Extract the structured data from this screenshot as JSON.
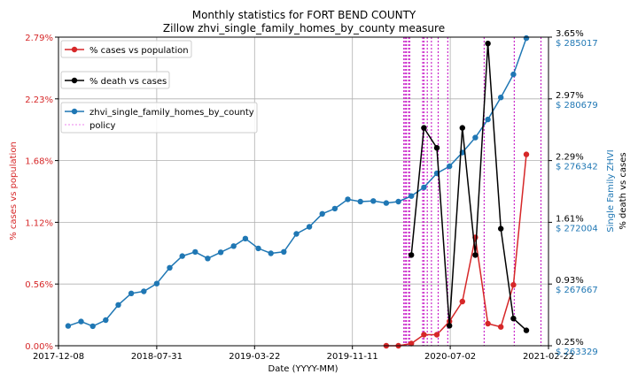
{
  "chart_data": {
    "type": "line",
    "title": "Monthly statistics for FORT BEND COUNTY",
    "subtitle": "Zillow zhvi_single_family_homes_by_county measure",
    "xlabel": "Date (YYYY-MM)",
    "x_ticks": [
      "2017-12-08",
      "2018-07-31",
      "2019-03-22",
      "2019-11-11",
      "2020-07-02",
      "2021-02-22"
    ],
    "xlim": [
      "2017-12-08",
      "2021-02-22"
    ],
    "left_axis": {
      "label": "% cases vs population",
      "color": "#d62728",
      "ylim": [
        0,
        2.79
      ],
      "ticks": [
        "0.00%",
        "0.56%",
        "1.12%",
        "1.68%",
        "2.23%",
        "2.79%"
      ]
    },
    "right_axis_1": {
      "label": "% death vs cases",
      "color": "#000000",
      "ylim": [
        0.25,
        3.65
      ],
      "ticks": [
        "0.25%",
        "0.93%",
        "1.61%",
        "2.29%",
        "2.97%",
        "3.65%"
      ]
    },
    "right_axis_2": {
      "label": "Single Family ZHVI",
      "color": "#1f77b4",
      "ylim": [
        263329,
        285017
      ],
      "ticks": [
        "$ 263329",
        "$ 267667",
        "$ 272004",
        "$ 276342",
        "$ 280679",
        "$ 285017"
      ]
    },
    "legend": [
      {
        "name": "% cases vs population",
        "color": "#d62728"
      },
      {
        "name": "% death vs cases",
        "color": "#000000"
      },
      {
        "name": "zhvi_single_family_homes_by_county",
        "color": "#1f77b4"
      },
      {
        "name": "policy",
        "color": "#ee82ee"
      }
    ],
    "grid": true,
    "series": [
      {
        "name": "% cases vs population",
        "axis": "left",
        "color": "#d62728",
        "x": [
          "2020-01-31",
          "2020-02-29",
          "2020-03-31",
          "2020-04-30",
          "2020-05-31",
          "2020-06-30",
          "2020-07-31",
          "2020-08-31",
          "2020-09-30",
          "2020-10-31",
          "2020-11-30",
          "2020-12-31"
        ],
        "values": [
          0.0,
          0.0,
          0.02,
          0.1,
          0.1,
          0.22,
          0.4,
          0.98,
          0.2,
          0.17,
          0.55,
          1.73
        ]
      },
      {
        "name": "% death vs cases",
        "axis": "right_1",
        "color": "#000000",
        "x": [
          "2020-03-31",
          "2020-04-30",
          "2020-05-31",
          "2020-06-30",
          "2020-07-31",
          "2020-08-31",
          "2020-09-30",
          "2020-10-31",
          "2020-11-30",
          "2020-12-31"
        ],
        "values": [
          1.25,
          2.65,
          2.43,
          0.47,
          2.65,
          1.25,
          3.58,
          1.54,
          0.55,
          0.42
        ]
      },
      {
        "name": "zhvi_single_family_homes_by_county",
        "axis": "right_2",
        "color": "#1f77b4",
        "x": [
          "2017-12-31",
          "2018-01-31",
          "2018-02-28",
          "2018-03-31",
          "2018-04-30",
          "2018-05-31",
          "2018-06-30",
          "2018-07-31",
          "2018-08-31",
          "2018-09-30",
          "2018-10-31",
          "2018-11-30",
          "2018-12-31",
          "2019-01-31",
          "2019-02-28",
          "2019-03-31",
          "2019-04-30",
          "2019-05-31",
          "2019-06-30",
          "2019-07-31",
          "2019-08-31",
          "2019-09-30",
          "2019-10-31",
          "2019-11-30",
          "2019-12-31",
          "2020-01-31",
          "2020-02-29",
          "2020-03-31",
          "2020-04-30",
          "2020-05-31",
          "2020-06-30",
          "2020-07-31",
          "2020-08-31",
          "2020-09-30",
          "2020-10-31",
          "2020-11-30",
          "2020-12-31"
        ],
        "values": [
          264720,
          265030,
          264700,
          265130,
          266200,
          267010,
          267150,
          267700,
          268810,
          269630,
          269920,
          269460,
          269900,
          270330,
          270860,
          270170,
          269820,
          269930,
          271190,
          271690,
          272600,
          272970,
          273620,
          273460,
          273500,
          273360,
          273460,
          273850,
          274460,
          275450,
          275940,
          276910,
          277960,
          279230,
          280780,
          282400,
          284950
        ]
      }
    ],
    "policy_dates": [
      "2020-03-13",
      "2020-03-16",
      "2020-03-19",
      "2020-03-24",
      "2020-03-27",
      "2020-04-27",
      "2020-04-30",
      "2020-05-08",
      "2020-05-18",
      "2020-06-03",
      "2020-06-26",
      "2020-09-21",
      "2020-12-02",
      "2021-02-04"
    ]
  }
}
